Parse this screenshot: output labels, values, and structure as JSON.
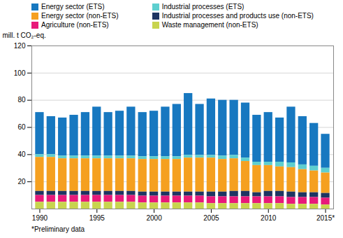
{
  "chart_data": {
    "type": "bar",
    "stacked": true,
    "ylabel": "mill. t CO₂-eq.",
    "caption": "*Preliminary data",
    "x": [
      1990,
      1991,
      1992,
      1993,
      1994,
      1995,
      1996,
      1997,
      1998,
      1999,
      2000,
      2001,
      2002,
      2003,
      2004,
      2005,
      2006,
      2007,
      2008,
      2009,
      2010,
      2011,
      2012,
      2013,
      2014,
      2015
    ],
    "xlim": [
      1989.3,
      2015.7
    ],
    "xticks": [
      1990,
      1995,
      2000,
      2005,
      2010,
      {
        "value": 2015,
        "label": "2015*"
      }
    ],
    "ylim": [
      0,
      120
    ],
    "yticks": [
      20,
      40,
      60,
      80,
      100,
      120
    ],
    "grid": true,
    "legend": "top",
    "series": [
      {
        "name": "Energy sector (ETS)",
        "color": "#1778c0",
        "values": [
          31,
          28,
          28,
          30,
          32,
          36,
          32,
          33,
          36,
          32.5,
          33.5,
          36.5,
          38.5,
          45.5,
          37.5,
          41.5,
          41,
          40.5,
          40.5,
          34.5,
          36.5,
          32.5,
          41,
          35.5,
          31.5,
          25
        ]
      },
      {
        "name": "Industrial processes (ETS)",
        "color": "#5ecfcf",
        "values": [
          2.0,
          2.0,
          2.0,
          2.0,
          2.0,
          2.0,
          2.0,
          2.0,
          2.0,
          2.0,
          2.0,
          2.0,
          2.0,
          2.0,
          2.0,
          2.0,
          2.5,
          2.5,
          2.5,
          2.5,
          2.5,
          3.5,
          3.5,
          3.5,
          3.5,
          3.5
        ]
      },
      {
        "name": "Energy sector (non-ETS)",
        "color": "#f5a020",
        "values": [
          25.0,
          25.0,
          24.0,
          24.0,
          24.0,
          24.0,
          24.0,
          24.0,
          24.0,
          24.0,
          24.0,
          24.0,
          24.0,
          25.0,
          25.0,
          25.0,
          24.0,
          24.0,
          22.0,
          20.0,
          19.0,
          18.0,
          18.0,
          17.0,
          16.0,
          15.0
        ]
      },
      {
        "name": "Industrial processes and products use (non-ETS)",
        "color": "#1e3562",
        "values": [
          3.0,
          3.0,
          3.0,
          3.0,
          3.0,
          3.0,
          3.0,
          3.0,
          3.0,
          3.0,
          3.0,
          3.0,
          3.0,
          3.0,
          3.0,
          3.5,
          3.5,
          4.0,
          4.0,
          3.0,
          4.0,
          4.0,
          4.0,
          3.5,
          3.5,
          3.5
        ]
      },
      {
        "name": "Agriculture (non-ETS)",
        "color": "#e8197a",
        "values": [
          5.0,
          5.0,
          5.0,
          5.0,
          5.0,
          5.0,
          5.0,
          5.0,
          5.0,
          5.0,
          5.0,
          5.0,
          5.0,
          5.0,
          5.0,
          5.0,
          5.0,
          5.0,
          5.0,
          5.0,
          5.0,
          5.0,
          5.0,
          5.0,
          5.0,
          5.0
        ]
      },
      {
        "name": "Waste management (non-ETS)",
        "color": "#c8d44e",
        "values": [
          5.0,
          5.0,
          5.0,
          5.0,
          5.0,
          5.0,
          5.0,
          5.0,
          5.0,
          4.5,
          4.5,
          4.5,
          4.5,
          4.5,
          4.5,
          4.0,
          4.0,
          4.0,
          4.0,
          4.0,
          4.0,
          4.0,
          3.5,
          3.5,
          3.5,
          3.0
        ]
      }
    ]
  }
}
